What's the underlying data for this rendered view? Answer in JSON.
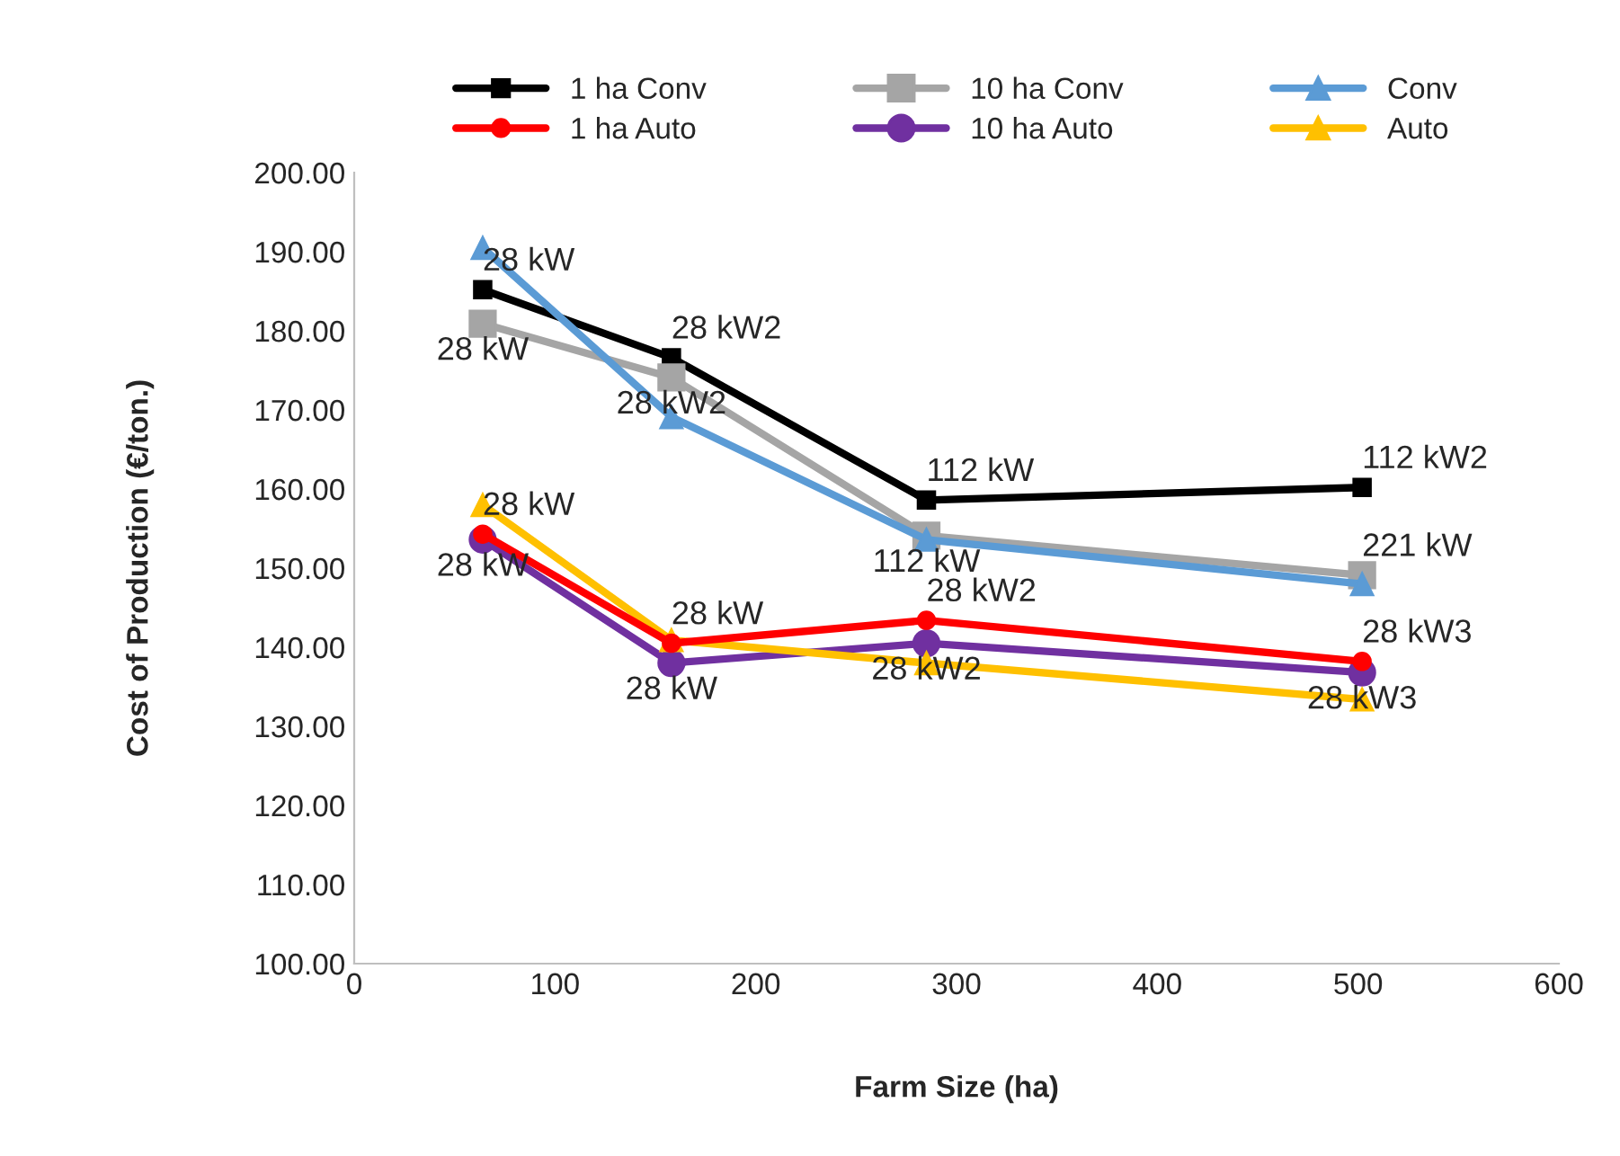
{
  "chart_data": {
    "type": "line",
    "xlabel": "Farm Size (ha)",
    "ylabel": "Cost of Production (€/ton.)",
    "x": [
      64,
      158,
      285,
      502
    ],
    "series": [
      {
        "name": "1 ha Conv",
        "color": "#000000",
        "marker": "square",
        "values": [
          185.2,
          176.6,
          158.6,
          160.2
        ]
      },
      {
        "name": "10 ha Conv",
        "color": "#a5a5a5",
        "marker": "square",
        "values": [
          180.9,
          174.1,
          154.1,
          149.1
        ]
      },
      {
        "name": "Conv",
        "color": "#5b9bd5",
        "marker": "triangle",
        "values": [
          190.5,
          169.1,
          153.6,
          148.0
        ]
      },
      {
        "name": "1 ha Auto",
        "color": "#ff0000",
        "marker": "circle",
        "values": [
          154.3,
          140.5,
          143.4,
          138.2
        ]
      },
      {
        "name": "10 ha Auto",
        "color": "#7030a0",
        "marker": "circle",
        "values": [
          153.6,
          138.0,
          140.5,
          136.8
        ]
      },
      {
        "name": "Auto",
        "color": "#ffc000",
        "marker": "triangle",
        "values": [
          158.0,
          140.9,
          138.0,
          133.4
        ]
      }
    ],
    "annotations": [
      {
        "text": "28 kW",
        "x": 64,
        "y": 185.2
      },
      {
        "text": "28 kW2",
        "x": 158,
        "y": 176.6
      },
      {
        "text": "112 kW",
        "x": 285,
        "y": 158.6
      },
      {
        "text": "112 kW2",
        "x": 502,
        "y": 160.2
      },
      {
        "text": "28 kW",
        "x": 64,
        "y": 180.9
      },
      {
        "text": "28 kW2",
        "x": 158,
        "y": 174.1
      },
      {
        "text": "112 kW",
        "x": 285,
        "y": 154.1
      },
      {
        "text": "221 kW",
        "x": 502,
        "y": 149.1
      },
      {
        "text": "28 kW",
        "x": 64,
        "y": 154.3
      },
      {
        "text": "28 kW",
        "x": 158,
        "y": 140.5
      },
      {
        "text": "28 kW2",
        "x": 285,
        "y": 143.4
      },
      {
        "text": "28 kW3",
        "x": 502,
        "y": 138.2
      },
      {
        "text": "28 kW",
        "x": 64,
        "y": 153.6
      },
      {
        "text": "28 kW",
        "x": 158,
        "y": 138.0
      },
      {
        "text": "28 kW2",
        "x": 285,
        "y": 140.5
      },
      {
        "text": "28 kW3",
        "x": 502,
        "y": 136.8
      }
    ],
    "xlim": [
      0,
      600
    ],
    "xticks": [
      0,
      100,
      200,
      300,
      400,
      500,
      600
    ],
    "ylim": [
      100,
      200
    ],
    "yticks": [
      {
        "value": 100,
        "label": "100.00"
      },
      {
        "value": 110,
        "label": "110.00"
      },
      {
        "value": 120,
        "label": "120.00"
      },
      {
        "value": 130,
        "label": "130.00"
      },
      {
        "value": 140,
        "label": "140.00"
      },
      {
        "value": 150,
        "label": "150.00"
      },
      {
        "value": 160,
        "label": "160.00"
      },
      {
        "value": 170,
        "label": "170.00"
      },
      {
        "value": 180,
        "label": "180.00"
      },
      {
        "value": 190,
        "label": "190.00"
      },
      {
        "value": 200,
        "label": "200.00"
      }
    ],
    "grid": false,
    "legend": "top"
  }
}
